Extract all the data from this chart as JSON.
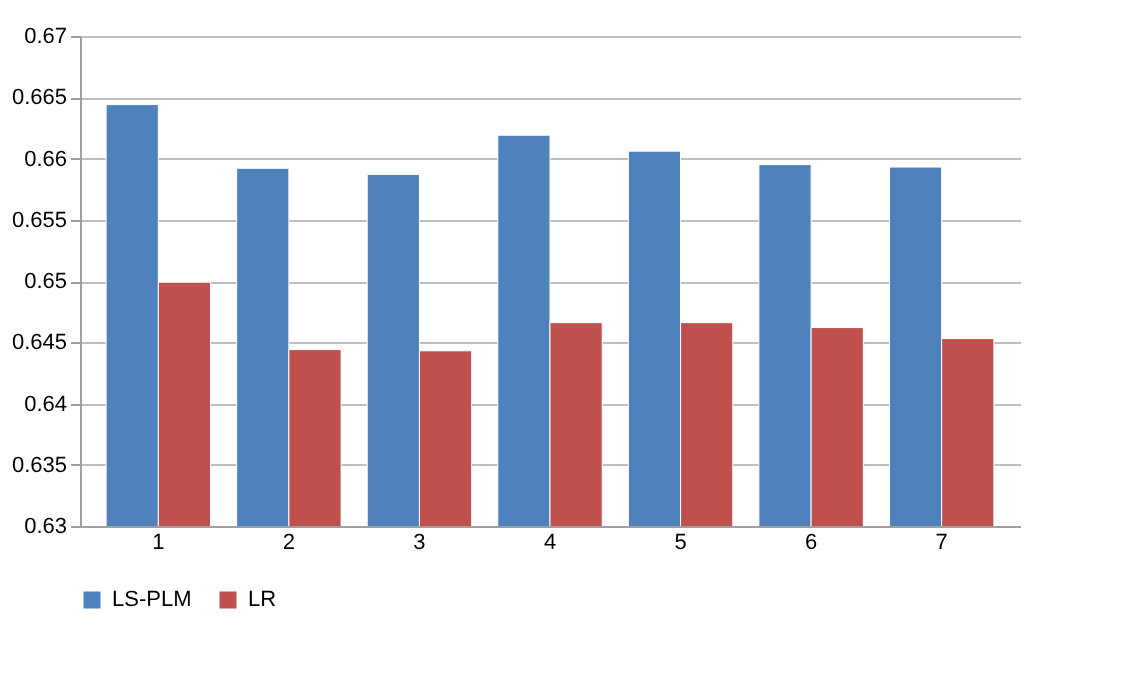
{
  "chart_data": {
    "type": "bar",
    "categories": [
      "1",
      "2",
      "3",
      "4",
      "5",
      "6",
      "7"
    ],
    "series": [
      {
        "name": "LS-PLM",
        "color": "#4f81bd",
        "values": [
          0.6644,
          0.6592,
          0.6587,
          0.6619,
          0.6606,
          0.6595,
          0.6593
        ]
      },
      {
        "name": "LR",
        "color": "#c0504d",
        "values": [
          0.6499,
          0.6444,
          0.6443,
          0.6466,
          0.6466,
          0.6462,
          0.6453
        ]
      }
    ],
    "ylim": [
      0.63,
      0.67
    ],
    "yticks": [
      0.63,
      0.635,
      0.64,
      0.645,
      0.65,
      0.655,
      0.66,
      0.665,
      0.67
    ],
    "grid": "y",
    "legend": "bottom"
  }
}
